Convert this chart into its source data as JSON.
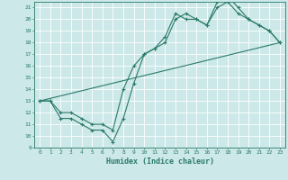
{
  "title": "",
  "xlabel": "Humidex (Indice chaleur)",
  "xlim": [
    -0.5,
    23.5
  ],
  "ylim": [
    9,
    21.5
  ],
  "xticks": [
    0,
    1,
    2,
    3,
    4,
    5,
    6,
    7,
    8,
    9,
    10,
    11,
    12,
    13,
    14,
    15,
    16,
    17,
    18,
    19,
    20,
    21,
    22,
    23
  ],
  "yticks": [
    9,
    10,
    11,
    12,
    13,
    14,
    15,
    16,
    17,
    18,
    19,
    20,
    21
  ],
  "bg_color": "#cce8e8",
  "grid_color": "#ffffff",
  "line_color": "#2a7a6a",
  "line1_x": [
    0,
    1,
    2,
    3,
    4,
    5,
    6,
    7,
    8,
    9,
    10,
    11,
    12,
    13,
    14,
    15,
    16,
    17,
    18,
    19,
    20,
    21,
    22,
    23
  ],
  "line1_y": [
    13,
    13,
    11.5,
    11.5,
    11,
    10.5,
    10.5,
    9.5,
    11.5,
    14.5,
    17,
    17.5,
    18,
    20,
    20.5,
    20,
    19.5,
    21,
    21.5,
    20.5,
    20,
    19.5,
    19,
    18
  ],
  "line2_x": [
    0,
    1,
    2,
    3,
    4,
    5,
    6,
    7,
    8,
    9,
    10,
    11,
    12,
    13,
    14,
    15,
    16,
    17,
    18,
    19,
    20,
    21,
    22,
    23
  ],
  "line2_y": [
    13,
    13,
    12,
    12,
    11.5,
    11,
    11,
    10.5,
    14,
    16,
    17,
    17.5,
    18.5,
    20.5,
    20,
    20,
    19.5,
    21.5,
    22,
    21,
    20,
    19.5,
    19,
    18
  ],
  "line3_x": [
    0,
    23
  ],
  "line3_y": [
    13,
    18
  ]
}
